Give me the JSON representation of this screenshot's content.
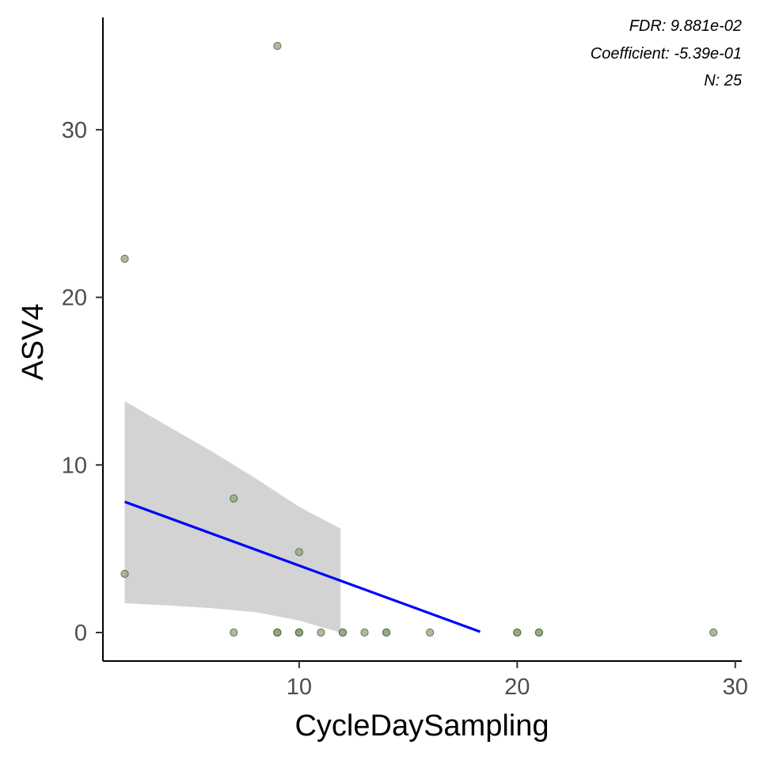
{
  "chart_data": {
    "type": "scatter",
    "xlabel": "CycleDaySampling",
    "ylabel": "ASV4",
    "xlim": [
      1.0,
      30.3
    ],
    "ylim": [
      -1.7,
      36.7
    ],
    "x_ticks": [
      10,
      20,
      30
    ],
    "y_ticks": [
      0,
      10,
      20,
      30
    ],
    "grid": false,
    "points": [
      {
        "x": 2,
        "y": 22.3
      },
      {
        "x": 2,
        "y": 3.5
      },
      {
        "x": 7,
        "y": 8.0
      },
      {
        "x": 7,
        "y": 0
      },
      {
        "x": 9,
        "y": 35.0
      },
      {
        "x": 9,
        "y": 0
      },
      {
        "x": 9,
        "y": 0
      },
      {
        "x": 9,
        "y": 0
      },
      {
        "x": 10,
        "y": 4.8
      },
      {
        "x": 10,
        "y": 0
      },
      {
        "x": 10,
        "y": 0
      },
      {
        "x": 10,
        "y": 0
      },
      {
        "x": 11,
        "y": 0
      },
      {
        "x": 12,
        "y": 0
      },
      {
        "x": 12,
        "y": 0
      },
      {
        "x": 13,
        "y": 0
      },
      {
        "x": 14,
        "y": 0
      },
      {
        "x": 14,
        "y": 0
      },
      {
        "x": 16,
        "y": 0
      },
      {
        "x": 20,
        "y": 0
      },
      {
        "x": 20,
        "y": 0
      },
      {
        "x": 21,
        "y": 0
      },
      {
        "x": 21,
        "y": 0
      },
      {
        "x": 29,
        "y": 0
      },
      {
        "x": 10,
        "y": 0
      }
    ],
    "fit_line": {
      "x": [
        2,
        18.3
      ],
      "y": [
        7.8,
        0.05
      ],
      "color": "#0000ff"
    },
    "confidence_band": {
      "x": [
        2,
        4,
        6,
        8,
        10,
        11.9
      ],
      "upper": [
        13.8,
        12.3,
        10.8,
        9.2,
        7.5,
        6.2
      ],
      "lower": [
        1.75,
        1.62,
        1.45,
        1.22,
        0.72,
        0.0
      ],
      "color": "#d3d3d3"
    },
    "point_fill": "#8fa67a",
    "point_stroke": "#4a5e38",
    "annotations": [
      "FDR: 9.881e-02",
      "Coefficient: -5.39e-01",
      "N: 25"
    ]
  }
}
